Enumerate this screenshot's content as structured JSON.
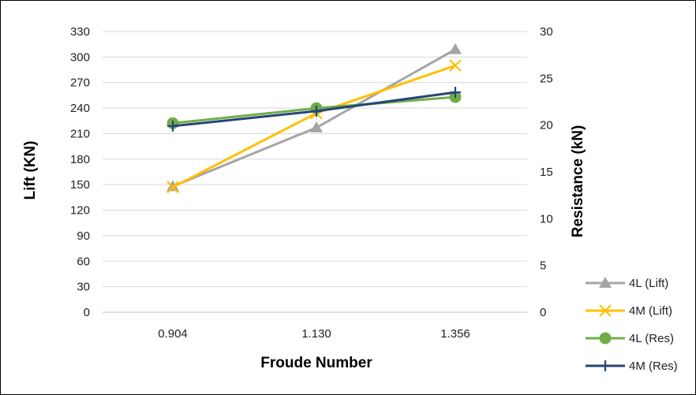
{
  "chart_data": {
    "type": "line",
    "categories": [
      "0.904",
      "1.130",
      "1.356"
    ],
    "xlabel": "Froude Number",
    "ylabel_left": "Lift (KN)",
    "ylabel_right": "Resistance (kN)",
    "ylim_left": [
      0,
      330
    ],
    "ylim_right": [
      0,
      30
    ],
    "yticks_left": [
      0,
      30,
      60,
      90,
      120,
      150,
      180,
      210,
      240,
      270,
      300,
      330
    ],
    "yticks_right": [
      0,
      5,
      10,
      15,
      20,
      25,
      30
    ],
    "grid": true,
    "legend_position": "bottom-right",
    "series": [
      {
        "name": "4L (Lift)",
        "axis": "left",
        "values": [
          148,
          217,
          309
        ],
        "color": "#a5a5a5",
        "marker": "triangle"
      },
      {
        "name": "4M (Lift)",
        "axis": "left",
        "values": [
          147,
          234,
          290
        ],
        "color": "#ffc000",
        "marker": "x"
      },
      {
        "name": "4L (Res)",
        "axis": "right",
        "values": [
          20.2,
          21.8,
          23.0
        ],
        "color": "#70ad47",
        "marker": "circle"
      },
      {
        "name": "4M (Res)",
        "axis": "right",
        "values": [
          19.9,
          21.5,
          23.5
        ],
        "color": "#264478",
        "marker": "plus"
      }
    ]
  }
}
